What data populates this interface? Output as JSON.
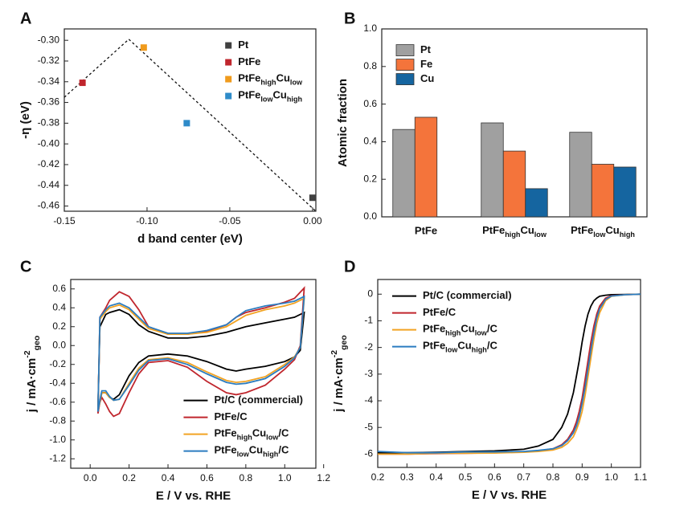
{
  "chart_data": [
    {
      "panel": "A",
      "type": "scatter",
      "xlabel": "d band center (eV)",
      "ylabel": "-η (eV)",
      "legend": "upper right",
      "xlim": [
        -0.15,
        0.002
      ],
      "ylim": [
        -0.465,
        -0.289
      ],
      "xticks": [
        {
          "value": -0.15,
          "label": "-0.15"
        },
        {
          "value": -0.1,
          "label": "-0.10"
        },
        {
          "value": -0.05,
          "label": "-0.05"
        },
        {
          "value": 0,
          "label": "0.00"
        }
      ],
      "yticks": [
        {
          "value": -0.3,
          "label": "-0.30"
        },
        -0.32,
        -0.34,
        -0.36,
        -0.38,
        {
          "value": -0.4,
          "label": "-0.40"
        },
        -0.42,
        -0.44,
        -0.46
      ],
      "guide": {
        "x": [
          -0.15,
          -0.111,
          0.002
        ],
        "values": [
          -0.355,
          -0.299,
          -0.465
        ]
      },
      "series": [
        {
          "name": "Pt",
          "color": "#404040",
          "x": [
            0.0
          ],
          "values": [
            -0.452
          ]
        },
        {
          "name": "PtFe",
          "color": "#c0262d",
          "x": [
            -0.139
          ],
          "values": [
            -0.341
          ]
        },
        {
          "name": [
            "PtFe",
            {
              "sub": "high"
            },
            "Cu",
            {
              "sub": "low"
            }
          ],
          "color": "#f09b1c",
          "x": [
            -0.102
          ],
          "values": [
            -0.307
          ]
        },
        {
          "name": [
            "PtFe",
            {
              "sub": "low"
            },
            "Cu",
            {
              "sub": "high"
            }
          ],
          "color": "#2e8bc9",
          "x": [
            -0.076
          ],
          "values": [
            -0.38
          ]
        }
      ]
    },
    {
      "panel": "B",
      "type": "bar",
      "ylabel": "Atomic fraction",
      "legend": "upper left",
      "ylim": [
        0,
        1
      ],
      "yticks": [
        {
          "value": 0,
          "label": "0.0"
        },
        0.2,
        0.4,
        0.6,
        0.8,
        {
          "value": 1,
          "label": "1.0"
        }
      ],
      "categories": [
        "PtFe",
        [
          "PtFe",
          {
            "sub": "high"
          },
          "Cu",
          {
            "sub": "low"
          }
        ],
        [
          "PtFe",
          {
            "sub": "low"
          },
          "Cu",
          {
            "sub": "high"
          }
        ]
      ],
      "series": [
        {
          "name": "Pt",
          "color": "#a0a0a0",
          "values": [
            0.465,
            0.5,
            0.45
          ]
        },
        {
          "name": "Fe",
          "color": "#f4743b",
          "values": [
            0.53,
            0.35,
            0.28
          ]
        },
        {
          "name": "Cu",
          "color": "#1565a0",
          "values": [
            null,
            0.15,
            0.265
          ]
        }
      ]
    },
    {
      "panel": "C",
      "type": "line",
      "xlabel": "E / V vs. RHE",
      "ylabel": [
        "j / mA·cm",
        {
          "sup": "-2"
        },
        {
          "sub": "geo"
        }
      ],
      "legend": "lower right",
      "xlim": [
        -0.1,
        1.16
      ],
      "ylim": [
        -1.3,
        0.7
      ],
      "xticks": [
        {
          "value": 0,
          "label": "0.0"
        },
        0.2,
        0.4,
        0.6,
        0.8,
        {
          "value": 1,
          "label": "1.0"
        },
        1.2
      ],
      "yticks": [
        -1.2,
        {
          "value": -1,
          "label": "-1.0"
        },
        -0.8,
        -0.6,
        -0.4,
        -0.2,
        {
          "value": 0,
          "label": "0.0"
        },
        0.2,
        0.4,
        0.6
      ],
      "x": [
        0.04,
        0.05,
        0.08,
        0.1,
        0.15,
        0.2,
        0.25,
        0.3,
        0.4,
        0.5,
        0.6,
        0.7,
        0.75,
        0.8,
        0.9,
        1.0,
        1.05,
        1.1,
        1.1,
        1.08,
        1.05,
        1.0,
        0.9,
        0.8,
        0.75,
        0.7,
        0.6,
        0.5,
        0.4,
        0.3,
        0.25,
        0.2,
        0.15,
        0.12,
        0.1,
        0.08,
        0.06,
        0.05,
        0.04
      ],
      "series": [
        {
          "name": "Pt/C (commercial)",
          "color": "#000000",
          "values": [
            -0.65,
            0.2,
            0.33,
            0.35,
            0.38,
            0.33,
            0.22,
            0.15,
            0.08,
            0.08,
            0.1,
            0.14,
            0.17,
            0.2,
            0.24,
            0.28,
            0.3,
            0.35,
            0.35,
            -0.05,
            -0.12,
            -0.17,
            -0.22,
            -0.25,
            -0.27,
            -0.25,
            -0.17,
            -0.11,
            -0.09,
            -0.11,
            -0.18,
            -0.32,
            -0.52,
            -0.57,
            -0.55,
            -0.5,
            -0.5,
            -0.6,
            -0.65
          ]
        },
        {
          "name": "PtFe/C",
          "color": "#c0262d",
          "values": [
            -0.72,
            0.3,
            0.4,
            0.48,
            0.57,
            0.52,
            0.38,
            0.2,
            0.12,
            0.12,
            0.15,
            0.22,
            0.3,
            0.35,
            0.4,
            0.46,
            0.5,
            0.61,
            0.61,
            0.0,
            -0.15,
            -0.25,
            -0.42,
            -0.5,
            -0.52,
            -0.5,
            -0.38,
            -0.23,
            -0.16,
            -0.18,
            -0.3,
            -0.5,
            -0.72,
            -0.75,
            -0.7,
            -0.62,
            -0.55,
            -0.6,
            -0.72
          ]
        },
        {
          "name": [
            "PtFe",
            {
              "sub": "high"
            },
            "Cu",
            {
              "sub": "low"
            },
            "/C"
          ],
          "color": "#f2a323",
          "values": [
            -0.7,
            0.28,
            0.36,
            0.4,
            0.43,
            0.38,
            0.28,
            0.18,
            0.12,
            0.12,
            0.14,
            0.2,
            0.26,
            0.32,
            0.38,
            0.42,
            0.45,
            0.5,
            0.5,
            -0.02,
            -0.12,
            -0.2,
            -0.33,
            -0.38,
            -0.39,
            -0.37,
            -0.28,
            -0.18,
            -0.13,
            -0.15,
            -0.24,
            -0.4,
            -0.57,
            -0.58,
            -0.55,
            -0.5,
            -0.5,
            -0.6,
            -0.7
          ]
        },
        {
          "name": [
            "PtFe",
            {
              "sub": "low"
            },
            "Cu",
            {
              "sub": "high"
            },
            "/C"
          ],
          "color": "#2b7cc0",
          "values": [
            -0.7,
            0.3,
            0.38,
            0.42,
            0.45,
            0.4,
            0.3,
            0.2,
            0.13,
            0.13,
            0.16,
            0.22,
            0.3,
            0.37,
            0.42,
            0.45,
            0.47,
            0.52,
            0.52,
            -0.02,
            -0.13,
            -0.22,
            -0.35,
            -0.4,
            -0.41,
            -0.39,
            -0.3,
            -0.2,
            -0.14,
            -0.16,
            -0.26,
            -0.42,
            -0.57,
            -0.58,
            -0.54,
            -0.48,
            -0.48,
            -0.58,
            -0.7
          ]
        }
      ]
    },
    {
      "panel": "D",
      "type": "line",
      "xlabel": "E / V vs. RHE",
      "ylabel": [
        "j / mA·cm",
        {
          "sup": "-2"
        },
        {
          "sub": "geo"
        }
      ],
      "legend": "upper left",
      "xlim": [
        0.2,
        1.1
      ],
      "ylim": [
        -6.5,
        0.55
      ],
      "xticks": [
        0.2,
        0.3,
        0.4,
        0.5,
        0.6,
        0.7,
        0.8,
        0.9,
        {
          "value": 1,
          "label": "1.0"
        },
        1.1
      ],
      "yticks": [
        -6,
        -5,
        -4,
        -3,
        -2,
        -1,
        0
      ],
      "x": [
        0.2,
        0.3,
        0.4,
        0.5,
        0.6,
        0.7,
        0.75,
        0.8,
        0.83,
        0.85,
        0.87,
        0.88,
        0.89,
        0.9,
        0.91,
        0.92,
        0.93,
        0.94,
        0.95,
        0.96,
        0.98,
        1.0,
        1.05,
        1.1
      ],
      "series": [
        {
          "name": "Pt/C (commercial)",
          "color": "#000000",
          "values": [
            -5.95,
            -5.95,
            -5.93,
            -5.9,
            -5.88,
            -5.82,
            -5.7,
            -5.45,
            -5.0,
            -4.5,
            -3.7,
            -3.1,
            -2.5,
            -1.8,
            -1.2,
            -0.75,
            -0.45,
            -0.25,
            -0.15,
            -0.08,
            -0.04,
            -0.02,
            -0.01,
            0.0
          ]
        },
        {
          "name": "PtFe/C",
          "color": "#c0262d",
          "values": [
            -6.0,
            -6.0,
            -5.98,
            -5.97,
            -5.95,
            -5.92,
            -5.88,
            -5.8,
            -5.65,
            -5.45,
            -5.1,
            -4.8,
            -4.4,
            -3.9,
            -3.2,
            -2.5,
            -1.8,
            -1.2,
            -0.75,
            -0.45,
            -0.15,
            -0.06,
            -0.02,
            0.0
          ]
        },
        {
          "name": [
            "PtFe",
            {
              "sub": "high"
            },
            "Cu",
            {
              "sub": "low"
            },
            "/C"
          ],
          "color": "#f2a323",
          "values": [
            -6.0,
            -6.0,
            -5.97,
            -5.97,
            -5.96,
            -5.93,
            -5.9,
            -5.85,
            -5.75,
            -5.6,
            -5.35,
            -5.1,
            -4.8,
            -4.4,
            -3.8,
            -3.1,
            -2.4,
            -1.7,
            -1.1,
            -0.7,
            -0.25,
            -0.08,
            -0.02,
            0.0
          ]
        },
        {
          "name": [
            "PtFe",
            {
              "sub": "low"
            },
            "Cu",
            {
              "sub": "high"
            },
            "/C"
          ],
          "color": "#2b7cc0",
          "values": [
            -5.9,
            -5.95,
            -5.95,
            -5.92,
            -5.92,
            -5.9,
            -5.86,
            -5.8,
            -5.68,
            -5.5,
            -5.2,
            -4.95,
            -4.6,
            -4.1,
            -3.5,
            -2.8,
            -2.1,
            -1.45,
            -0.9,
            -0.55,
            -0.2,
            -0.07,
            -0.02,
            0.0
          ]
        }
      ]
    }
  ]
}
